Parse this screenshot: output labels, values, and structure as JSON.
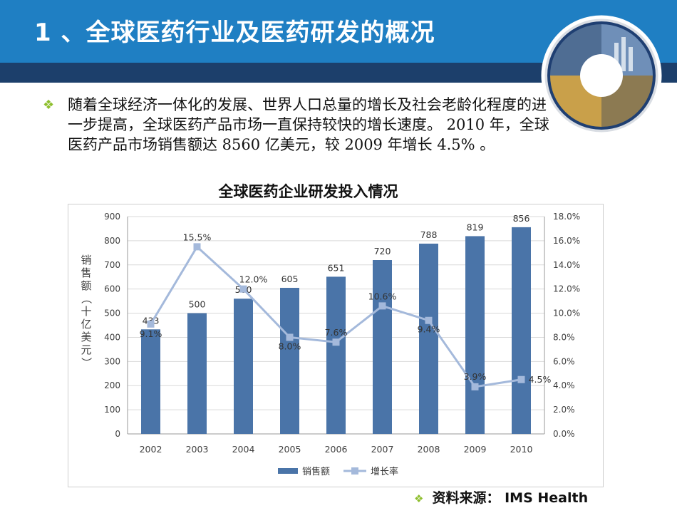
{
  "header": {
    "title": "1 、全球医药行业及医药研发的概况"
  },
  "bullet": {
    "text": "随着全球经济一体化的发展、世界人口总量的增长及社会老龄化程度的进一步提高，全球医药产品市场一直保持较快的增长速度。 2010 年，全球医药产品市场销售额达 8560 亿美元，较 2009 年增长 4.5% 。"
  },
  "chart_title": "全球医药企业研发投入情况",
  "source": {
    "label": "资料来源：",
    "value": "IMS Health"
  },
  "colors": {
    "header": "#1f7fc3",
    "header_dark": "#1c3f6b",
    "bar": "#4a74a8",
    "line": "#a4b9db",
    "bullet": "#8fbf2f"
  },
  "chart_data": {
    "type": "bar+line",
    "categories": [
      "2002",
      "2003",
      "2004",
      "2005",
      "2006",
      "2007",
      "2008",
      "2009",
      "2010"
    ],
    "series": [
      {
        "name": "销售额",
        "type": "bar",
        "axis": "left",
        "values": [
          433,
          500,
          560,
          605,
          651,
          720,
          788,
          819,
          856
        ],
        "labels": [
          "433",
          "500",
          "560",
          "605",
          "651",
          "720",
          "788",
          "819",
          "856"
        ]
      },
      {
        "name": "增长率",
        "type": "line",
        "axis": "right",
        "values": [
          9.1,
          15.5,
          12.0,
          8.0,
          7.6,
          10.6,
          9.4,
          3.9,
          4.5
        ],
        "labels": [
          "9.1%",
          "15.5%",
          "12.0%",
          "8.0%",
          "7.6%",
          "10.6%",
          "9.4%",
          "3.9%",
          "4.5%"
        ]
      }
    ],
    "ylabel": "销售额（十亿美元）",
    "ylim": [
      0,
      900
    ],
    "yticks": [
      "0",
      "100",
      "200",
      "300",
      "400",
      "500",
      "600",
      "700",
      "800",
      "900"
    ],
    "y2lim": [
      0,
      18
    ],
    "y2ticks": [
      "0.0%",
      "2.0%",
      "4.0%",
      "6.0%",
      "8.0%",
      "10.0%",
      "12.0%",
      "14.0%",
      "16.0%",
      "18.0%"
    ],
    "grid": true,
    "legend": "bottom"
  }
}
